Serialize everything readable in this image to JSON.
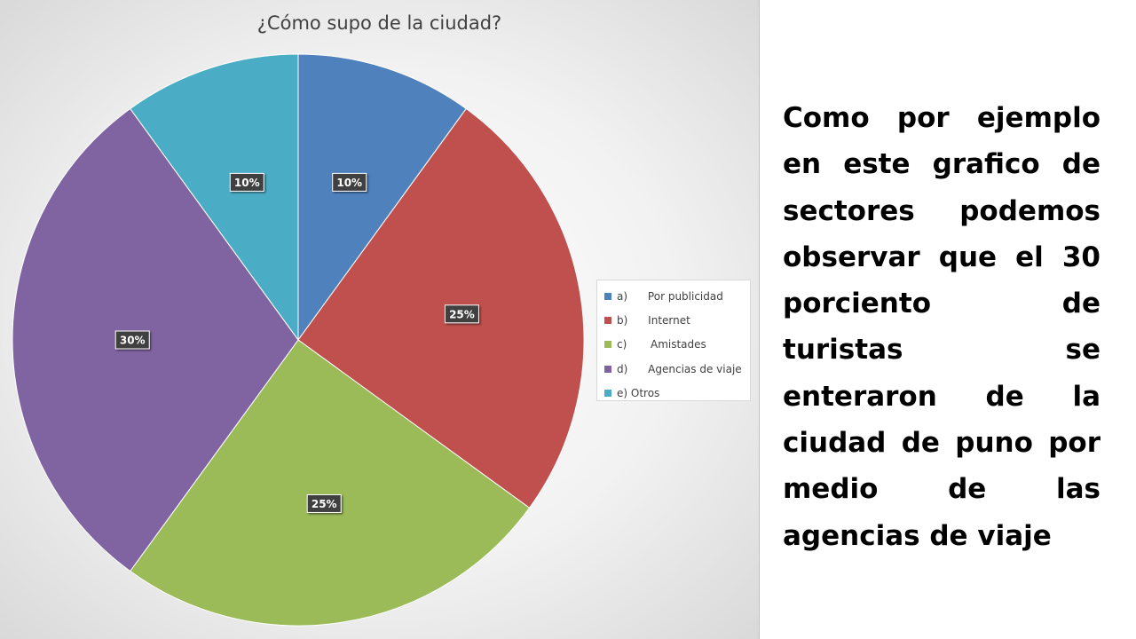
{
  "description": "Como por ejemplo en este grafico de sectores podemos observar que el 30 porciento de turistas se enteraron de la ciudad de puno por medio de las agencias de viaje",
  "chart_data": {
    "type": "pie",
    "title": "¿Cómo supo de la ciudad?",
    "categories": [
      "a)      Por publicidad",
      "b)      Internet",
      "c)       Amistades",
      "d)      Agencias de viaje",
      "e) Otros"
    ],
    "values": [
      10,
      25,
      25,
      30,
      10
    ],
    "labels": [
      "10%",
      "25%",
      "25%",
      "30%",
      "10%"
    ],
    "colors": [
      "#4f81bd",
      "#c0504d",
      "#9bbb59",
      "#8064a2",
      "#4bacc6"
    ],
    "legend_position": "right",
    "start_angle": "12 o'clock, clockwise"
  }
}
